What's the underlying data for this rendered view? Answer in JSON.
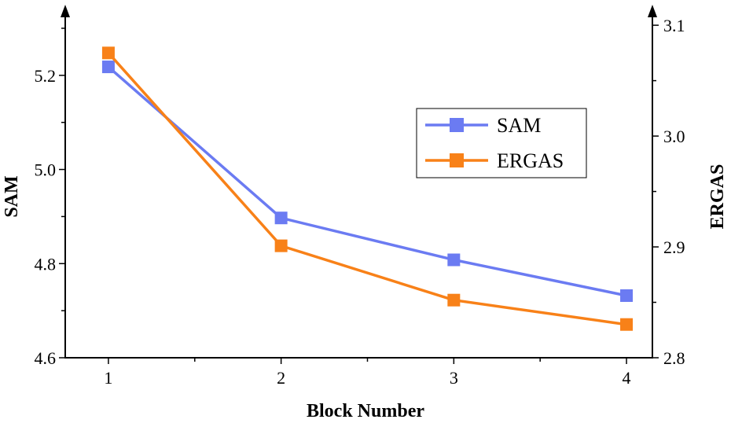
{
  "chart_data": {
    "type": "line",
    "xlabel": "Block Number",
    "ylabel_left": "SAM",
    "ylabel_right": "ERGAS",
    "x": [
      1,
      2,
      3,
      4
    ],
    "x_tick_labels": [
      "1",
      "2",
      "3",
      "4"
    ],
    "xlim": [
      0.75,
      4.15
    ],
    "ylim_left": [
      4.6,
      5.33
    ],
    "y_ticks_left": [
      4.6,
      4.8,
      5.0,
      5.2
    ],
    "y_tick_labels_left": [
      "4.6",
      "4.8",
      "5.0",
      "5.2"
    ],
    "ylim_right": [
      2.8,
      3.11
    ],
    "y_ticks_right": [
      2.8,
      2.9,
      3.0,
      3.1
    ],
    "y_tick_labels_right": [
      "2.8",
      "2.9",
      "3.0",
      "3.1"
    ],
    "grid": false,
    "legend_position": "center-right",
    "series": [
      {
        "name": "SAM",
        "axis": "left",
        "color": "#6b7bf2",
        "marker": "square",
        "values": [
          5.218,
          4.897,
          4.808,
          4.732
        ]
      },
      {
        "name": "ERGAS",
        "axis": "right",
        "color": "#f88118",
        "marker": "square",
        "values": [
          3.075,
          2.901,
          2.852,
          2.83
        ]
      }
    ]
  }
}
